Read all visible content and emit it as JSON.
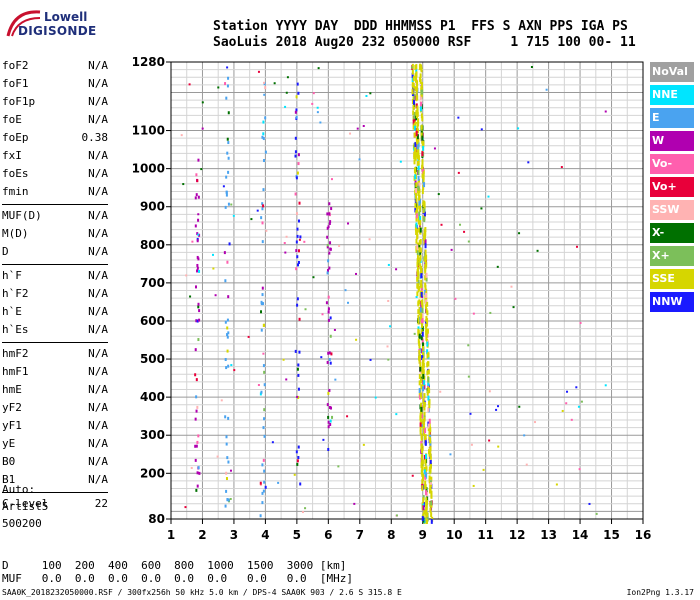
{
  "logo": {
    "line1": "Lowell",
    "line2": "DIGISONDE"
  },
  "header": {
    "line1": "Station YYYY DAY  DDD HHMMSS P1  FFS S AXN PPS IGA PS",
    "line2": "SaoLuis 2018 Aug20 232 050000 RSF     1 715 100 00- 11"
  },
  "params": [
    [
      {
        "name": "foF2",
        "value": "N/A"
      },
      {
        "name": "foF1",
        "value": "N/A"
      },
      {
        "name": "foF1p",
        "value": "N/A"
      },
      {
        "name": "foE",
        "value": "N/A"
      },
      {
        "name": "foEp",
        "value": "0.38"
      },
      {
        "name": "fxI",
        "value": "N/A"
      },
      {
        "name": "foEs",
        "value": "N/A"
      },
      {
        "name": "fmin",
        "value": "N/A"
      }
    ],
    [
      {
        "name": "MUF(D)",
        "value": "N/A"
      },
      {
        "name": "M(D)",
        "value": "N/A"
      },
      {
        "name": "D",
        "value": "N/A"
      }
    ],
    [
      {
        "name": "h`F",
        "value": "N/A"
      },
      {
        "name": "h`F2",
        "value": "N/A"
      },
      {
        "name": "h`E",
        "value": "N/A"
      },
      {
        "name": "h`Es",
        "value": "N/A"
      }
    ],
    [
      {
        "name": "hmF2",
        "value": "N/A"
      },
      {
        "name": "hmF1",
        "value": "N/A"
      },
      {
        "name": "hmE",
        "value": "N/A"
      },
      {
        "name": "yF2",
        "value": "N/A"
      },
      {
        "name": "yF1",
        "value": "N/A"
      },
      {
        "name": "yE",
        "value": "N/A"
      },
      {
        "name": "B0",
        "value": "N/A"
      },
      {
        "name": "B1",
        "value": "N/A"
      }
    ],
    [
      {
        "name": "C-level",
        "value": "22"
      }
    ]
  ],
  "auto": {
    "line1": "Auto:",
    "line2": "Artist5",
    "line3": "500200"
  },
  "distance_row": "D     100  200  400  600  800  1000  1500  3000 [km]",
  "muf_row": "MUF   0.0  0.0  0.0  0.0  0.0  0.0   0.0   0.0  [MHz]",
  "footer_left": "SAA0K_2018232050000.RSF / 300fx256h 50 kHz 5.0 km / DPS-4 SAA0K 903 / 2.6 S 315.8 E",
  "footer_right": "Ion2Png 1.3.17",
  "legend": [
    {
      "label": "NoVal",
      "color": "#a0a0a0"
    },
    {
      "label": "NNE",
      "color": "#00e5ff"
    },
    {
      "label": "E",
      "color": "#4aa3f0"
    },
    {
      "label": "W",
      "color": "#b000b0"
    },
    {
      "label": "Vo-",
      "color": "#ff5fae"
    },
    {
      "label": "Vo+",
      "color": "#e8003a"
    },
    {
      "label": "SSW",
      "color": "#ffb3b3"
    },
    {
      "label": "X-",
      "color": "#007000"
    },
    {
      "label": "X+",
      "color": "#7cbf5a"
    },
    {
      "label": "SSE",
      "color": "#d6d600"
    },
    {
      "label": "NNW",
      "color": "#1a1aff"
    }
  ],
  "chart_data": {
    "type": "scatter",
    "xlim": [
      1,
      16
    ],
    "ylim": [
      80,
      1280
    ],
    "x_ticks": [
      1,
      2,
      3,
      4,
      5,
      6,
      7,
      8,
      9,
      10,
      11,
      12,
      13,
      14,
      15,
      16
    ],
    "y_ticks": [
      80,
      200,
      300,
      400,
      500,
      600,
      700,
      800,
      900,
      1000,
      1100,
      1280
    ],
    "y_ticks_minor": [
      100,
      200,
      300,
      400,
      500,
      600,
      700,
      800,
      900,
      1000,
      1100,
      1200
    ],
    "grid": true,
    "vertical_traces": [
      {
        "x": 9.0,
        "y_range": [
          80,
          1280
        ],
        "color": "#d6d600"
      },
      {
        "x": 9.1,
        "y_range": [
          80,
          1280
        ],
        "color": "#d6d600"
      },
      {
        "x": 9.25,
        "y_range": [
          80,
          1280
        ],
        "color": "#d6d600"
      },
      {
        "x": 1.8,
        "y_range": [
          120,
          1030
        ],
        "color": "#b000b0"
      },
      {
        "x": 2.75,
        "y_range": [
          100,
          1270
        ],
        "color": "#4aa3f0"
      },
      {
        "x": 3.9,
        "y_range": [
          90,
          1270
        ],
        "color": "#4aa3f0"
      },
      {
        "x": 5.0,
        "y_range": [
          150,
          1270
        ],
        "color": "#1a1aff"
      },
      {
        "x": 6.0,
        "y_range": [
          250,
          950
        ],
        "color": "#b000b0"
      }
    ]
  }
}
